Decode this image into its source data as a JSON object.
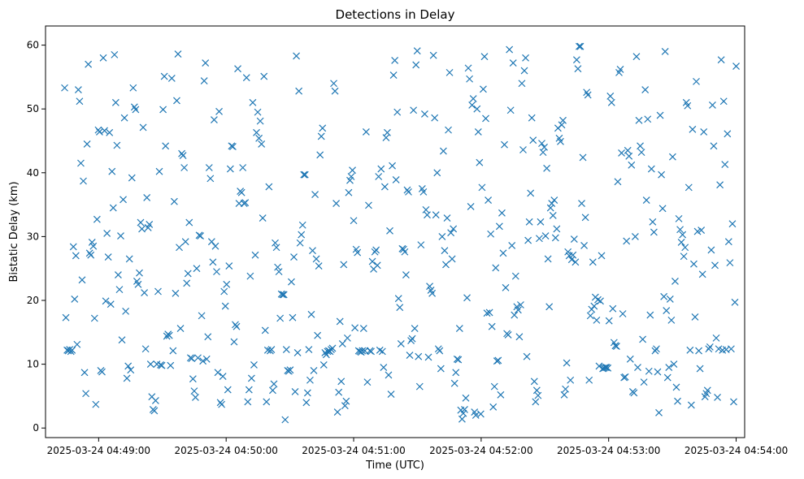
{
  "chart_data": {
    "type": "scatter",
    "title": "Detections in Delay",
    "xlabel": "Time (UTC)",
    "ylabel": "Bistatic Delay (km)",
    "marker": "x",
    "color": "#1f77b4",
    "grid": false,
    "legend": "none",
    "x_start": "2025-03-24 04:48:44",
    "x_end": "2025-03-24 04:54:00",
    "xlim": [
      "2025-03-24 04:48:35",
      "2025-03-24 04:54:04"
    ],
    "ylim": [
      -1.5,
      63
    ],
    "xticks": [
      "2025-03-24 04:49:00",
      "2025-03-24 04:50:00",
      "2025-03-24 04:51:00",
      "2025-03-24 04:52:00",
      "2025-03-24 04:53:00",
      "2025-03-24 04:54:00"
    ],
    "yticks": [
      "0",
      "10",
      "20",
      "30",
      "40",
      "50",
      "60"
    ],
    "y_values": [
      53.3,
      17.3,
      12.2,
      12.1,
      12.3,
      12.0,
      12.2,
      28.4,
      20.2,
      27.0,
      13.1,
      53.0,
      51.2,
      41.5,
      23.2,
      38.7,
      8.7,
      5.4,
      44.5,
      57.0,
      27.4,
      27.1,
      29.1,
      28.5,
      17.2,
      3.7,
      32.7,
      46.7,
      46.4,
      9.0,
      8.8,
      58.0,
      46.6,
      19.9,
      30.5,
      26.8,
      46.3,
      19.4,
      40.2,
      34.5,
      58.5,
      51.0,
      44.3,
      24.0,
      21.7,
      30.1,
      13.8,
      35.8,
      48.6,
      18.3,
      7.8,
      9.7,
      26.5,
      9.1,
      39.2,
      53.3,
      50.3,
      49.9,
      23.0,
      22.5,
      24.3,
      32.2,
      31.2,
      47.1,
      21.2,
      12.4,
      36.1,
      31.4,
      31.9,
      10.0,
      4.9,
      2.9,
      2.7,
      4.3,
      10.0,
      21.4,
      40.2,
      9.9,
      9.8,
      49.9,
      55.1,
      44.2,
      14.4,
      14.7,
      14.5,
      9.8,
      54.8,
      12.1,
      35.5,
      21.1,
      51.3,
      58.6,
      28.3,
      15.6,
      43.0,
      42.7,
      40.8,
      29.2,
      22.7,
      24.2,
      32.2,
      11.0,
      10.9,
      7.7,
      5.8,
      4.8,
      25.0,
      11.0,
      30.2,
      30.1,
      17.6,
      10.5,
      54.4,
      57.2,
      10.8,
      14.3,
      40.8,
      39.1,
      29.2,
      26.0,
      48.3,
      28.5,
      24.5,
      8.7,
      49.6,
      4.0,
      3.7,
      8.1,
      21.4,
      19.1,
      22.5,
      6.0,
      25.4,
      40.6,
      44.2,
      44.1,
      13.5,
      16.2,
      15.9,
      56.3,
      35.2,
      37.1,
      36.9,
      40.8,
      35.2,
      35.3,
      54.9,
      4.1,
      6.0,
      23.8,
      7.8,
      51.0,
      9.9,
      27.1,
      46.3,
      49.5,
      45.4,
      48.1,
      44.5,
      32.9,
      55.1,
      15.3,
      4.1,
      12.2,
      37.8,
      12.1,
      12.3,
      5.9,
      6.9,
      29.0,
      28.3,
      25.2,
      24.5,
      17.2,
      21.0,
      20.9,
      20.9,
      1.3,
      12.3,
      9.0,
      8.9,
      9.1,
      22.9,
      17.3,
      26.8,
      5.7,
      58.3,
      11.8,
      52.8,
      29.0,
      30.3,
      31.8,
      39.7,
      39.7,
      4.0,
      5.5,
      12.3,
      7.5,
      17.8,
      27.8,
      9.0,
      36.6,
      26.5,
      14.5,
      25.4,
      42.8,
      45.7,
      47.0,
      9.9,
      11.8,
      11.5,
      12.0,
      12.1,
      12.0,
      12.3,
      12.5,
      54.0,
      52.8,
      35.2,
      2.5,
      5.6,
      16.7,
      7.3,
      13.2,
      25.6,
      3.5,
      4.2,
      14.1,
      36.9,
      38.8,
      39.4,
      40.4,
      32.5,
      15.7,
      28.0,
      27.5,
      12.1,
      12.0,
      11.9,
      12.1,
      15.6,
      12.1,
      46.4,
      7.2,
      34.9,
      12.1,
      12.0,
      26.1,
      24.9,
      27.6,
      27.9,
      25.5,
      39.4,
      12.2,
      40.6,
      12.0,
      9.5,
      37.8,
      45.5,
      46.3,
      8.3,
      30.9,
      5.3,
      41.1,
      55.3,
      57.6,
      38.9,
      49.5,
      20.3,
      18.9,
      13.2,
      28.1,
      28.0,
      27.6,
      24.0,
      37.3,
      37.0,
      11.4,
      13.7,
      14.0,
      49.8,
      15.6,
      56.9,
      59.1,
      11.2,
      6.5,
      28.7,
      37.5,
      37.0,
      49.2,
      34.2,
      33.4,
      11.1,
      22.2,
      21.6,
      21.1,
      58.4,
      48.6,
      33.4,
      40.0,
      12.4,
      12.1,
      9.3,
      30.0,
      43.4,
      27.8,
      25.6,
      32.9,
      46.7,
      55.7,
      30.6,
      26.5,
      31.2,
      7.0,
      8.7,
      10.8,
      10.7,
      15.6,
      2.8,
      1.4,
      2.3,
      2.9,
      4.7,
      20.4,
      56.4,
      54.7,
      34.7,
      50.6,
      51.6,
      2.5,
      2.0,
      50.0,
      46.4,
      41.6,
      2.2,
      37.7,
      53.1,
      58.2,
      48.5,
      18.0,
      35.7,
      18.1,
      30.4,
      15.9,
      3.3,
      6.5,
      25.1,
      10.5,
      10.6,
      31.6,
      5.2,
      33.7,
      27.4,
      44.4,
      22.0,
      14.8,
      14.6,
      59.3,
      49.8,
      28.6,
      57.2,
      17.7,
      23.8,
      19.0,
      18.5,
      14.3,
      19.3,
      54.0,
      43.6,
      56.0,
      58.0,
      11.2,
      29.4,
      32.3,
      36.8,
      48.6,
      45.1,
      7.3,
      4.1,
      5.9,
      5.1,
      29.7,
      32.3,
      44.6,
      43.2,
      44.0,
      30.1,
      40.7,
      26.5,
      19.0,
      34.5,
      35.2,
      33.3,
      35.7,
      29.8,
      31.2,
      47.0,
      45.4,
      44.9,
      47.5,
      48.2,
      5.2,
      6.1,
      10.2,
      27.6,
      27.0,
      7.5,
      26.4,
      27.1,
      29.6,
      26.0,
      57.7,
      56.3,
      59.8,
      59.8,
      35.2,
      42.4,
      28.6,
      33.0,
      52.6,
      52.2,
      7.5,
      17.6,
      18.6,
      26.0,
      19.1,
      20.5,
      16.9,
      20.1,
      9.7,
      19.9,
      27.0,
      9.3,
      9.4,
      9.5,
      9.5,
      9.4,
      16.8,
      52.0,
      51.0,
      18.7,
      13.4,
      12.9,
      12.8,
      38.6,
      55.7,
      56.2,
      43.1,
      17.9,
      7.9,
      8.0,
      29.3,
      43.5,
      42.6,
      10.8,
      41.2,
      5.7,
      5.5,
      30.0,
      58.2,
      9.5,
      48.2,
      44.2,
      43.2,
      13.9,
      7.2,
      53.0,
      35.7,
      48.4,
      8.9,
      17.7,
      40.6,
      32.3,
      30.7,
      12.1,
      12.4,
      8.8,
      2.4,
      49.0,
      39.7,
      34.4,
      20.6,
      59.0,
      18.4,
      7.9,
      9.5,
      20.2,
      16.9,
      42.5,
      10.0,
      23.0,
      6.4,
      4.2,
      32.8,
      31.1,
      29.1,
      30.3,
      26.9,
      28.3,
      51.0,
      50.5,
      37.7,
      12.2,
      3.6,
      46.8,
      25.7,
      17.4,
      54.3,
      30.8,
      12.1,
      9.3,
      31.0,
      24.1,
      46.4,
      4.9,
      5.4,
      5.9,
      12.4,
      12.7,
      27.9,
      50.6,
      44.2,
      25.5,
      14.1,
      4.8,
      12.4,
      38.1,
      57.7,
      12.2,
      51.2,
      41.3,
      12.3,
      46.1,
      29.2,
      25.9,
      12.4,
      32.0,
      4.1,
      19.7,
      56.7
    ]
  }
}
